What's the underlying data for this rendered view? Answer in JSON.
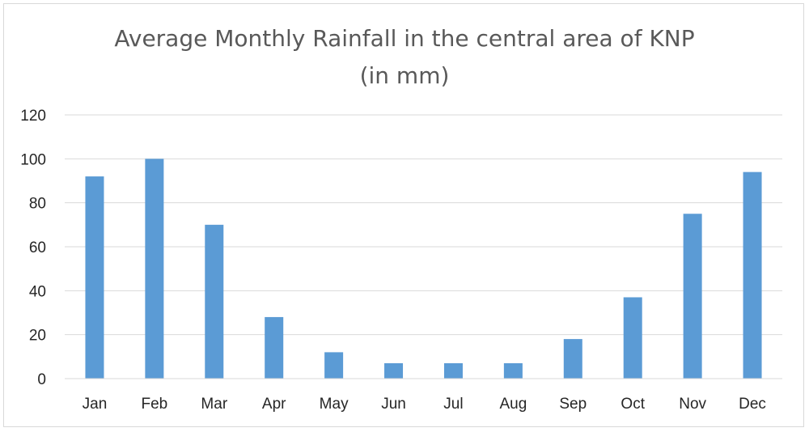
{
  "chart_data": {
    "type": "bar",
    "title": "Average Monthly Rainfall in the central area of KNP",
    "subtitle": "(in mm)",
    "xlabel": "",
    "ylabel": "",
    "categories": [
      "Jan",
      "Feb",
      "Mar",
      "Apr",
      "May",
      "Jun",
      "Jul",
      "Aug",
      "Sep",
      "Oct",
      "Nov",
      "Dec"
    ],
    "values": [
      92,
      100,
      70,
      28,
      12,
      7,
      7,
      7,
      18,
      37,
      75,
      94
    ],
    "ylim": [
      0,
      120
    ],
    "yticks": [
      "0",
      "20",
      "40",
      "60",
      "80",
      "100",
      "120"
    ],
    "grid": true,
    "legend": "none",
    "bar_color": "#5b9bd5"
  }
}
